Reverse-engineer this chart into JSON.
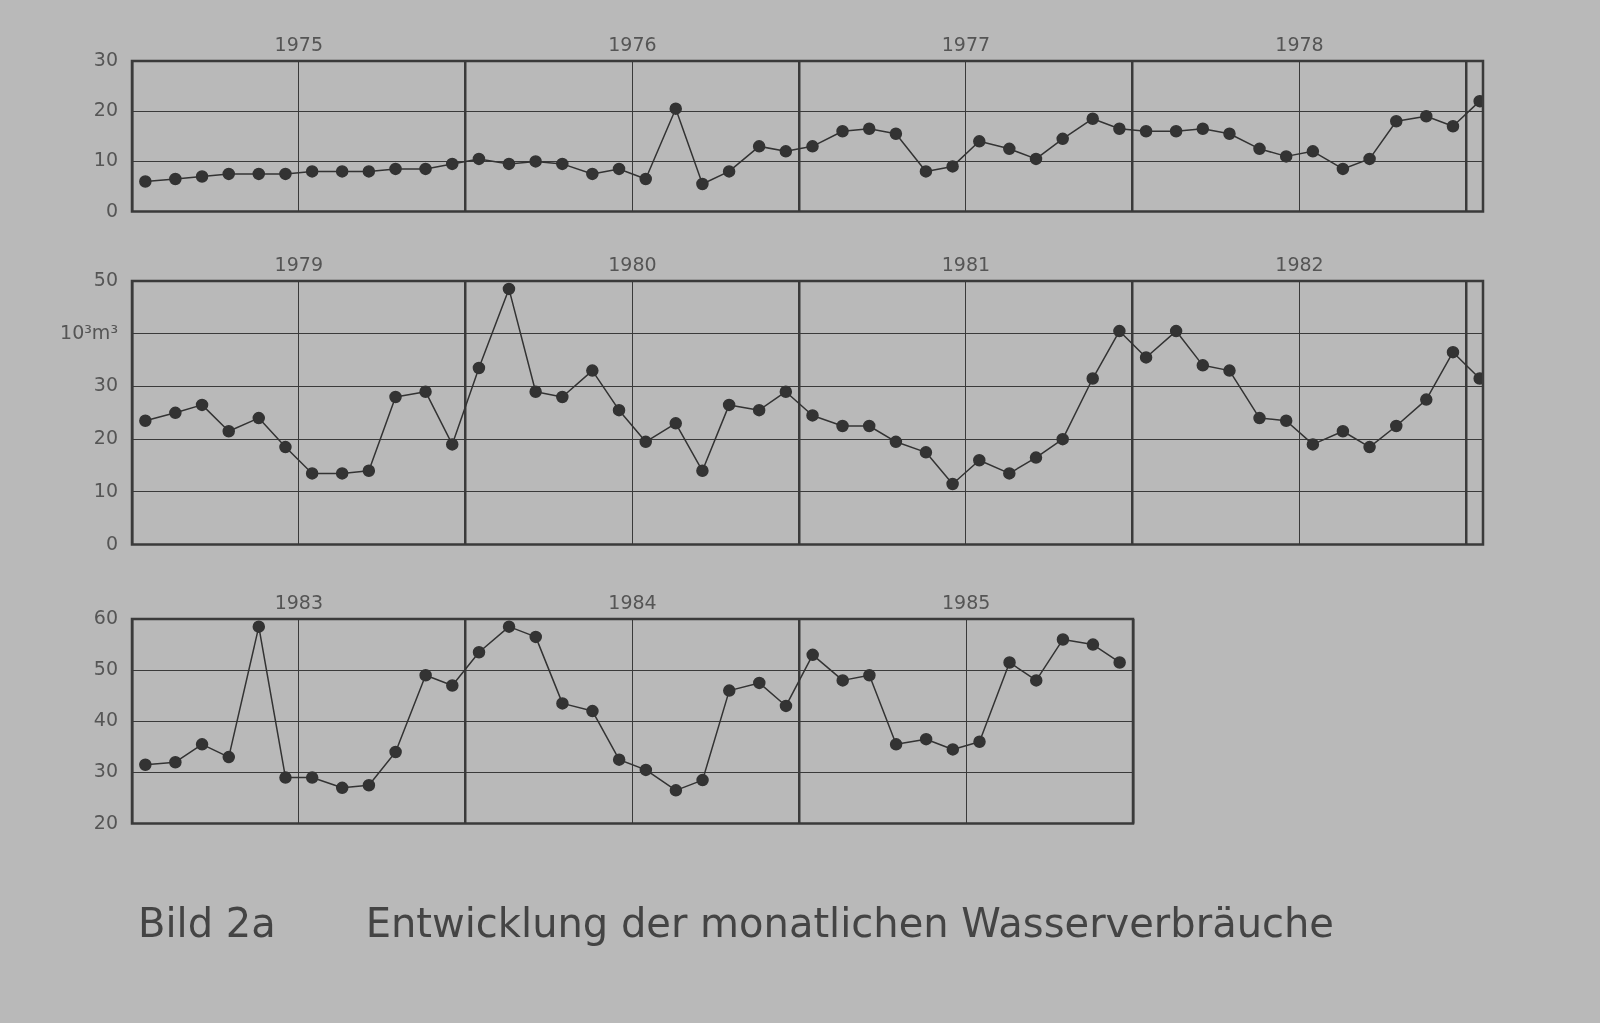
{
  "chart_data": [
    {
      "type": "line",
      "x": [
        1975.04,
        1975.13,
        1975.21,
        1975.29,
        1975.38,
        1975.46,
        1975.54,
        1975.63,
        1975.71,
        1975.79,
        1975.88,
        1975.96,
        1976.04,
        1976.13,
        1976.21,
        1976.29,
        1976.38,
        1976.46,
        1976.54,
        1976.63,
        1976.71,
        1976.79,
        1976.88,
        1976.96,
        1977.04,
        1977.13,
        1977.21,
        1977.29,
        1977.38,
        1977.46,
        1977.54,
        1977.63,
        1977.71,
        1977.79,
        1977.88,
        1977.96,
        1978.04,
        1978.13,
        1978.21,
        1978.29,
        1978.38,
        1978.46,
        1978.54,
        1978.63,
        1978.71,
        1978.79,
        1978.88,
        1978.96,
        1979.04
      ],
      "series": [
        {
          "color": "#333333",
          "values": [
            6,
            6.5,
            7,
            7.5,
            7.5,
            7.5,
            8,
            8,
            8,
            8.5,
            8.5,
            9.5,
            10.5,
            9.5,
            10,
            9.5,
            7.5,
            8.5,
            6.5,
            20.5,
            5.5,
            8,
            13,
            12,
            13,
            16,
            16.5,
            15.5,
            8,
            9,
            14,
            12.5,
            10.5,
            14.5,
            18.5,
            16.5,
            16,
            16,
            16.5,
            15.5,
            12.5,
            11,
            12,
            8.5,
            10.5,
            18,
            19,
            17,
            22
          ]
        }
      ],
      "xlim": [
        1975,
        1979.05
      ],
      "xticks": [
        {
          "value": 1975,
          "label": null
        },
        {
          "value": 1975.5,
          "label": "1975"
        },
        {
          "value": 1976,
          "label": null
        },
        {
          "value": 1976.5,
          "label": "1976"
        },
        {
          "value": 1977,
          "label": null
        },
        {
          "value": 1977.5,
          "label": "1977"
        },
        {
          "value": 1978,
          "label": null
        },
        {
          "value": 1978.5,
          "label": "1978"
        },
        {
          "value": 1979,
          "label": null
        }
      ],
      "ylim": [
        0,
        30
      ],
      "yticks": [
        0,
        10,
        20,
        30
      ],
      "grid": true,
      "marker": "circle"
    },
    {
      "type": "line",
      "x": [
        1979.04,
        1979.13,
        1979.21,
        1979.29,
        1979.38,
        1979.46,
        1979.54,
        1979.63,
        1979.71,
        1979.79,
        1979.88,
        1979.96,
        1980.04,
        1980.13,
        1980.21,
        1980.29,
        1980.38,
        1980.46,
        1980.54,
        1980.63,
        1980.71,
        1980.79,
        1980.88,
        1980.96,
        1981.04,
        1981.13,
        1981.21,
        1981.29,
        1981.38,
        1981.46,
        1981.54,
        1981.63,
        1981.71,
        1981.79,
        1981.88,
        1981.96,
        1982.04,
        1982.13,
        1982.21,
        1982.29,
        1982.38,
        1982.46,
        1982.54,
        1982.63,
        1982.71,
        1982.79,
        1982.88,
        1982.96,
        1983.04
      ],
      "series": [
        {
          "color": "#333333",
          "values": [
            23.5,
            25,
            26.5,
            21.5,
            24,
            18.5,
            13.5,
            13.5,
            14,
            28,
            29,
            19,
            33.5,
            48.5,
            29,
            28,
            33,
            25.5,
            19.5,
            23,
            14,
            26.5,
            25.5,
            29,
            24.5,
            22.5,
            22.5,
            19.5,
            17.5,
            11.5,
            16,
            13.5,
            16.5,
            20,
            31.5,
            40.5,
            35.5,
            40.5,
            34,
            33,
            24,
            23.5,
            19,
            21.5,
            18.5,
            22.5,
            27.5,
            36.5,
            31.5
          ]
        }
      ],
      "xlim": [
        1979,
        1983.05
      ],
      "xticks": [
        {
          "value": 1979,
          "label": null
        },
        {
          "value": 1979.5,
          "label": "1979"
        },
        {
          "value": 1980,
          "label": null
        },
        {
          "value": 1980.5,
          "label": "1980"
        },
        {
          "value": 1981,
          "label": null
        },
        {
          "value": 1981.5,
          "label": "1981"
        },
        {
          "value": 1982,
          "label": null
        },
        {
          "value": 1982.5,
          "label": "1982"
        },
        {
          "value": 1983,
          "label": null
        }
      ],
      "ylim": [
        0,
        50
      ],
      "yticks": [
        0,
        10,
        20,
        30,
        {
          "value": 40,
          "label": null
        },
        50
      ],
      "ylabel": "10³m³",
      "grid": true,
      "marker": "circle"
    },
    {
      "type": "line",
      "x": [
        1983.04,
        1983.13,
        1983.21,
        1983.29,
        1983.38,
        1983.46,
        1983.54,
        1983.63,
        1983.71,
        1983.79,
        1983.88,
        1983.96,
        1984.04,
        1984.13,
        1984.21,
        1984.29,
        1984.38,
        1984.46,
        1984.54,
        1984.63,
        1984.71,
        1984.79,
        1984.88,
        1984.96,
        1985.04,
        1985.13,
        1985.21,
        1985.29,
        1985.38,
        1985.46,
        1985.54,
        1985.63,
        1985.71,
        1985.79,
        1985.88,
        1985.96
      ],
      "series": [
        {
          "color": "#333333",
          "values": [
            31.5,
            32,
            35.5,
            33,
            58.5,
            29,
            29,
            27,
            27.5,
            34,
            49,
            47,
            53.5,
            58.5,
            56.5,
            43.5,
            42,
            32.5,
            30.5,
            26.5,
            28.5,
            46,
            47.5,
            43,
            53,
            48,
            49,
            35.5,
            36.5,
            34.5,
            36,
            51.5,
            48,
            56,
            55,
            51.5
          ]
        }
      ],
      "xlim": [
        1983,
        1986
      ],
      "xticks": [
        {
          "value": 1983,
          "label": null
        },
        {
          "value": 1983.5,
          "label": "1983"
        },
        {
          "value": 1984,
          "label": null
        },
        {
          "value": 1984.5,
          "label": "1984"
        },
        {
          "value": 1985,
          "label": null
        },
        {
          "value": 1985.5,
          "label": "1985"
        },
        {
          "value": 1986,
          "label": null
        }
      ],
      "ylim": [
        20,
        60
      ],
      "yticks": [
        20,
        30,
        40,
        50,
        60
      ],
      "grid": true,
      "marker": "circle",
      "annotations": [
        "Bild 2a",
        "Entwicklung der monatlichen Wasserverbräuche"
      ]
    }
  ]
}
